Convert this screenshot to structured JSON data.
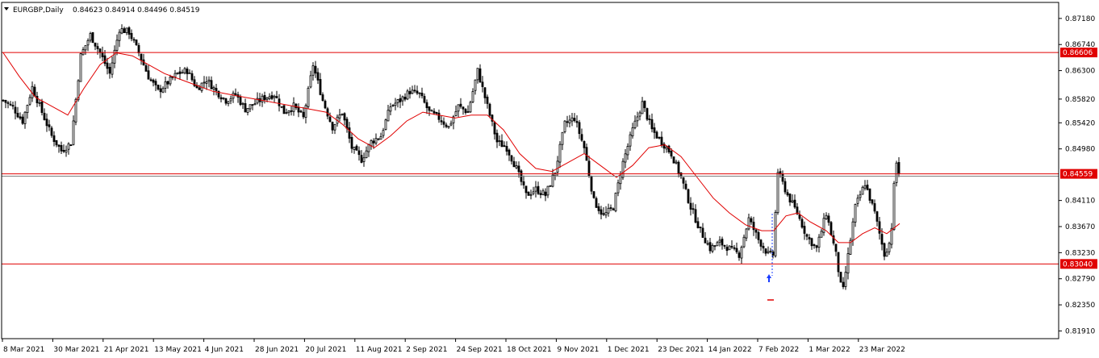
{
  "header": {
    "symbol": "EURGBP,Daily",
    "ohlc": "0.84623 0.84914 0.84496 0.84519"
  },
  "colors": {
    "candle": "#000000",
    "ma": "#e00000",
    "level": "#e00000",
    "level_label_bg": "#e00000",
    "grid_frame": "#000000",
    "current_price_line": "#808080"
  },
  "chart_data": {
    "type": "candlestick",
    "title": "EURGBP,Daily",
    "ylim": [
      0.8178,
      0.8745
    ],
    "y_ticks": [
      "0.87180",
      "0.86740",
      "0.86300",
      "0.85820",
      "0.85420",
      "0.84980",
      "0.84110",
      "0.83670",
      "0.83230",
      "0.82790",
      "0.82350",
      "0.81910"
    ],
    "x_ticks": [
      "8 Mar 2021",
      "30 Mar 2021",
      "21 Apr 2021",
      "13 May 2021",
      "4 Jun 2021",
      "28 Jun 2021",
      "20 Jul 2021",
      "11 Aug 2021",
      "2 Sep 2021",
      "24 Sep 2021",
      "18 Oct 2021",
      "9 Nov 2021",
      "1 Dec 2021",
      "23 Dec 2021",
      "14 Jan 2022",
      "7 Feb 2022",
      "1 Mar 2022",
      "23 Mar 2022"
    ],
    "levels": [
      {
        "price": 0.86606,
        "label": "0.86606"
      },
      {
        "price": 0.84559,
        "label": "0.84559"
      },
      {
        "price": 0.8304,
        "label": "0.83040"
      }
    ],
    "current_price": 0.84519,
    "close_path": [
      [
        0,
        0.858
      ],
      [
        12,
        0.8568
      ],
      [
        24,
        0.8545
      ],
      [
        36,
        0.8602
      ],
      [
        48,
        0.856
      ],
      [
        60,
        0.852
      ],
      [
        72,
        0.8495
      ],
      [
        84,
        0.8508
      ],
      [
        96,
        0.8655
      ],
      [
        108,
        0.869
      ],
      [
        120,
        0.866
      ],
      [
        132,
        0.8625
      ],
      [
        144,
        0.87
      ],
      [
        156,
        0.8695
      ],
      [
        168,
        0.866
      ],
      [
        180,
        0.862
      ],
      [
        192,
        0.8595
      ],
      [
        204,
        0.861
      ],
      [
        216,
        0.8625
      ],
      [
        228,
        0.863
      ],
      [
        240,
        0.86
      ],
      [
        252,
        0.8615
      ],
      [
        264,
        0.8595
      ],
      [
        276,
        0.858
      ],
      [
        288,
        0.859
      ],
      [
        300,
        0.8565
      ],
      [
        312,
        0.8575
      ],
      [
        324,
        0.8585
      ],
      [
        336,
        0.859
      ],
      [
        348,
        0.856
      ],
      [
        360,
        0.857
      ],
      [
        372,
        0.855
      ],
      [
        384,
        0.864
      ],
      [
        396,
        0.858
      ],
      [
        408,
        0.8535
      ],
      [
        420,
        0.856
      ],
      [
        432,
        0.85
      ],
      [
        444,
        0.848
      ],
      [
        456,
        0.851
      ],
      [
        468,
        0.852
      ],
      [
        480,
        0.857
      ],
      [
        492,
        0.858
      ],
      [
        504,
        0.8595
      ],
      [
        516,
        0.859
      ],
      [
        528,
        0.856
      ],
      [
        540,
        0.855
      ],
      [
        552,
        0.8535
      ],
      [
        564,
        0.857
      ],
      [
        576,
        0.856
      ],
      [
        588,
        0.863
      ],
      [
        600,
        0.857
      ],
      [
        612,
        0.851
      ],
      [
        624,
        0.85
      ],
      [
        636,
        0.8465
      ],
      [
        648,
        0.842
      ],
      [
        660,
        0.843
      ],
      [
        672,
        0.842
      ],
      [
        684,
        0.846
      ],
      [
        696,
        0.854
      ],
      [
        708,
        0.855
      ],
      [
        720,
        0.85
      ],
      [
        732,
        0.841
      ],
      [
        744,
        0.8385
      ],
      [
        756,
        0.84
      ],
      [
        768,
        0.8475
      ],
      [
        780,
        0.853
      ],
      [
        792,
        0.8575
      ],
      [
        804,
        0.853
      ],
      [
        816,
        0.851
      ],
      [
        828,
        0.849
      ],
      [
        840,
        0.845
      ],
      [
        852,
        0.84
      ],
      [
        864,
        0.836
      ],
      [
        876,
        0.833
      ],
      [
        888,
        0.834
      ],
      [
        900,
        0.833
      ],
      [
        912,
        0.832
      ],
      [
        924,
        0.838
      ],
      [
        936,
        0.8345
      ],
      [
        948,
        0.832
      ],
      [
        954,
        0.832
      ],
      [
        960,
        0.846
      ],
      [
        966,
        0.844
      ],
      [
        972,
        0.842
      ],
      [
        984,
        0.839
      ],
      [
        996,
        0.835
      ],
      [
        1008,
        0.833
      ],
      [
        1020,
        0.839
      ],
      [
        1032,
        0.832
      ],
      [
        1040,
        0.825
      ],
      [
        1044,
        0.829
      ],
      [
        1056,
        0.84
      ],
      [
        1068,
        0.844
      ],
      [
        1080,
        0.839
      ],
      [
        1092,
        0.832
      ],
      [
        1100,
        0.8345
      ],
      [
        1106,
        0.848
      ],
      [
        1111,
        0.8452
      ]
    ],
    "ma_path": [
      [
        0,
        0.866
      ],
      [
        20,
        0.862
      ],
      [
        40,
        0.8585
      ],
      [
        60,
        0.857
      ],
      [
        80,
        0.8555
      ],
      [
        100,
        0.86
      ],
      [
        120,
        0.864
      ],
      [
        140,
        0.866
      ],
      [
        160,
        0.8655
      ],
      [
        180,
        0.864
      ],
      [
        200,
        0.8625
      ],
      [
        220,
        0.8615
      ],
      [
        240,
        0.8605
      ],
      [
        260,
        0.8595
      ],
      [
        280,
        0.859
      ],
      [
        300,
        0.8585
      ],
      [
        320,
        0.858
      ],
      [
        340,
        0.8575
      ],
      [
        360,
        0.857
      ],
      [
        380,
        0.8565
      ],
      [
        400,
        0.856
      ],
      [
        420,
        0.854
      ],
      [
        440,
        0.8515
      ],
      [
        460,
        0.85
      ],
      [
        480,
        0.852
      ],
      [
        500,
        0.8545
      ],
      [
        520,
        0.856
      ],
      [
        540,
        0.8555
      ],
      [
        560,
        0.855
      ],
      [
        580,
        0.8555
      ],
      [
        600,
        0.8555
      ],
      [
        620,
        0.853
      ],
      [
        640,
        0.849
      ],
      [
        660,
        0.8465
      ],
      [
        680,
        0.846
      ],
      [
        700,
        0.8475
      ],
      [
        720,
        0.849
      ],
      [
        740,
        0.847
      ],
      [
        760,
        0.845
      ],
      [
        780,
        0.847
      ],
      [
        800,
        0.85
      ],
      [
        820,
        0.8505
      ],
      [
        840,
        0.8485
      ],
      [
        860,
        0.845
      ],
      [
        880,
        0.8415
      ],
      [
        900,
        0.839
      ],
      [
        920,
        0.837
      ],
      [
        940,
        0.836
      ],
      [
        955,
        0.836
      ],
      [
        970,
        0.8385
      ],
      [
        985,
        0.839
      ],
      [
        1000,
        0.8375
      ],
      [
        1020,
        0.836
      ],
      [
        1035,
        0.834
      ],
      [
        1050,
        0.834
      ],
      [
        1065,
        0.8355
      ],
      [
        1080,
        0.8365
      ],
      [
        1095,
        0.8355
      ],
      [
        1111,
        0.8372
      ]
    ]
  }
}
